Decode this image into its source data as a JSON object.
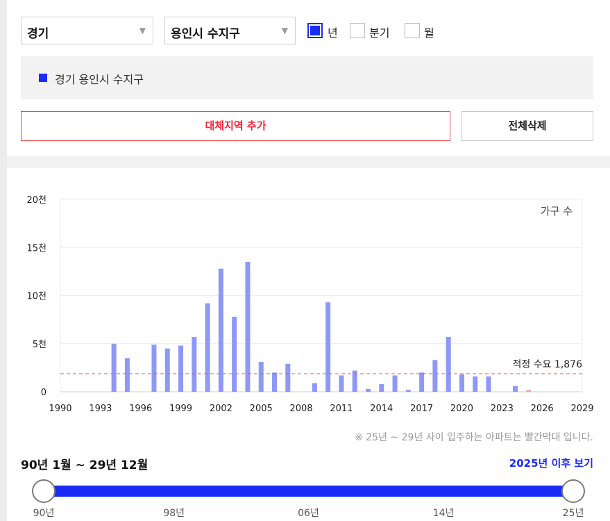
{
  "filters": {
    "province": "경기",
    "city": "용인시 수지구",
    "dropdown_arrow": "▼",
    "period_options": [
      {
        "label": "년",
        "checked": true
      },
      {
        "label": "분기",
        "checked": false
      },
      {
        "label": "월",
        "checked": false
      }
    ]
  },
  "legend": {
    "label": "경기 용인시 수지구",
    "color": "#1a2cf5"
  },
  "buttons": {
    "add": "대체지역 추가",
    "delete_all": "전체삭제"
  },
  "chart_data": {
    "type": "bar",
    "unit_label": "가구 수",
    "x_tick_labels": [
      "1990",
      "1993",
      "1996",
      "1999",
      "2002",
      "2005",
      "2008",
      "2011",
      "2014",
      "2017",
      "2020",
      "2023",
      "2026",
      "2029"
    ],
    "y_tick_labels": [
      "0",
      "5천",
      "10천",
      "15천",
      "20천"
    ],
    "ylim": [
      0,
      20000
    ],
    "xlim": [
      1990,
      2029
    ],
    "grid": true,
    "categories": [
      1994,
      1995,
      1997,
      1998,
      1999,
      2000,
      2001,
      2002,
      2003,
      2004,
      2005,
      2006,
      2007,
      2009,
      2010,
      2011,
      2012,
      2013,
      2014,
      2015,
      2016,
      2017,
      2018,
      2019,
      2020,
      2021,
      2022,
      2024,
      2025
    ],
    "values": [
      5000,
      3500,
      4900,
      4500,
      4800,
      5700,
      9200,
      12800,
      7800,
      13500,
      3100,
      2000,
      2900,
      900,
      9300,
      1700,
      2200,
      300,
      800,
      1700,
      200,
      2000,
      3300,
      5700,
      1800,
      1600,
      1600,
      600,
      200
    ],
    "series_color": "#8e98f7",
    "future_color": "#f5a7a7",
    "reference": {
      "label": "적정 수요 1,876",
      "value": 1876,
      "color": "#ee5555"
    }
  },
  "note": "※ 25년 ~ 29년 사이 입주하는 아파트는 빨간막대 입니다.",
  "period_range": "90년 1월 ~ 29년 12월",
  "after_link": "2025년 이후 보기",
  "slider": {
    "ticks": [
      "90년",
      "98년",
      "06년",
      "14년",
      "25년"
    ],
    "range_start": 0,
    "range_end": 1
  }
}
